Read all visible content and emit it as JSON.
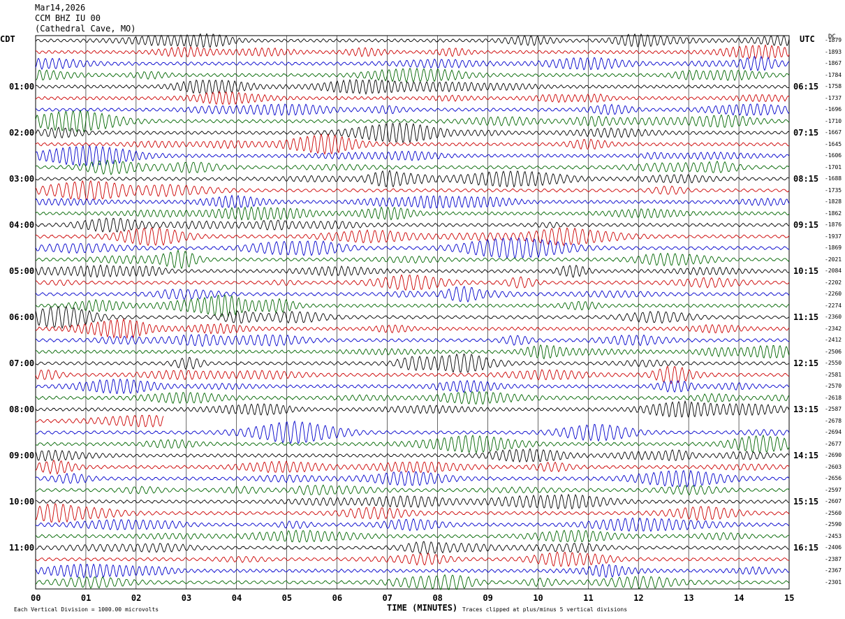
{
  "header": {
    "date": "Mar14,2026",
    "station": "CCM BHZ IU 00",
    "location": "(Cathedral Cave, MO)"
  },
  "left_tz": "CDT",
  "right_tz": "UTC",
  "dc_label": "DC",
  "footer": {
    "scale_note": "Each Vertical Division = 1000.00 microvolts",
    "clip_note": "Traces clipped at plus/minus 5 vertical divisions"
  },
  "chart_data": {
    "type": "line",
    "title": "CCM BHZ IU 00 (Cathedral Cave, MO)",
    "xlabel": "TIME (MINUTES)",
    "x_ticks": [
      "00",
      "01",
      "02",
      "03",
      "04",
      "05",
      "06",
      "07",
      "08",
      "09",
      "10",
      "11",
      "12",
      "13",
      "14",
      "15"
    ],
    "xlim": [
      0,
      15
    ],
    "trace_colors": [
      "#000000",
      "#cc0000",
      "#0000cc",
      "#006600"
    ],
    "trace_count": 48,
    "left_time_labels": [
      "01:00",
      "02:00",
      "03:00",
      "04:00",
      "05:00",
      "06:00",
      "07:00",
      "08:00",
      "09:00",
      "10:00",
      "11:00"
    ],
    "right_time_labels": [
      "06:15",
      "07:15",
      "08:15",
      "09:15",
      "10:15",
      "11:15",
      "12:15",
      "13:15",
      "14:15",
      "15:15",
      "16:15"
    ],
    "row_values": [
      "-1879",
      "-1893",
      "-1867",
      "-1784",
      "-1758",
      "-1737",
      "-1696",
      "-1710",
      "-1667",
      "-1645",
      "-1606",
      "-1701",
      "-1688",
      "-1735",
      "-1828",
      "-1862",
      "-1876",
      "-1937",
      "-1869",
      "-2021",
      "-2084",
      "-2202",
      "-2260",
      "-2274",
      "-2360",
      "-2342",
      "-2412",
      "-2506",
      "-2550",
      "-2581",
      "-2570",
      "-2618",
      "-2587",
      "-2678",
      "-2694",
      "-2677",
      "-2690",
      "-2603",
      "-2656",
      "-2597",
      "-2607",
      "-2560",
      "-2590",
      "-2453",
      "-2406",
      "-2387",
      "-2367",
      "-2301"
    ],
    "gap": {
      "trace_index": 33,
      "from_minute": 2.55,
      "to_minute": 5.2
    },
    "grid": true
  }
}
